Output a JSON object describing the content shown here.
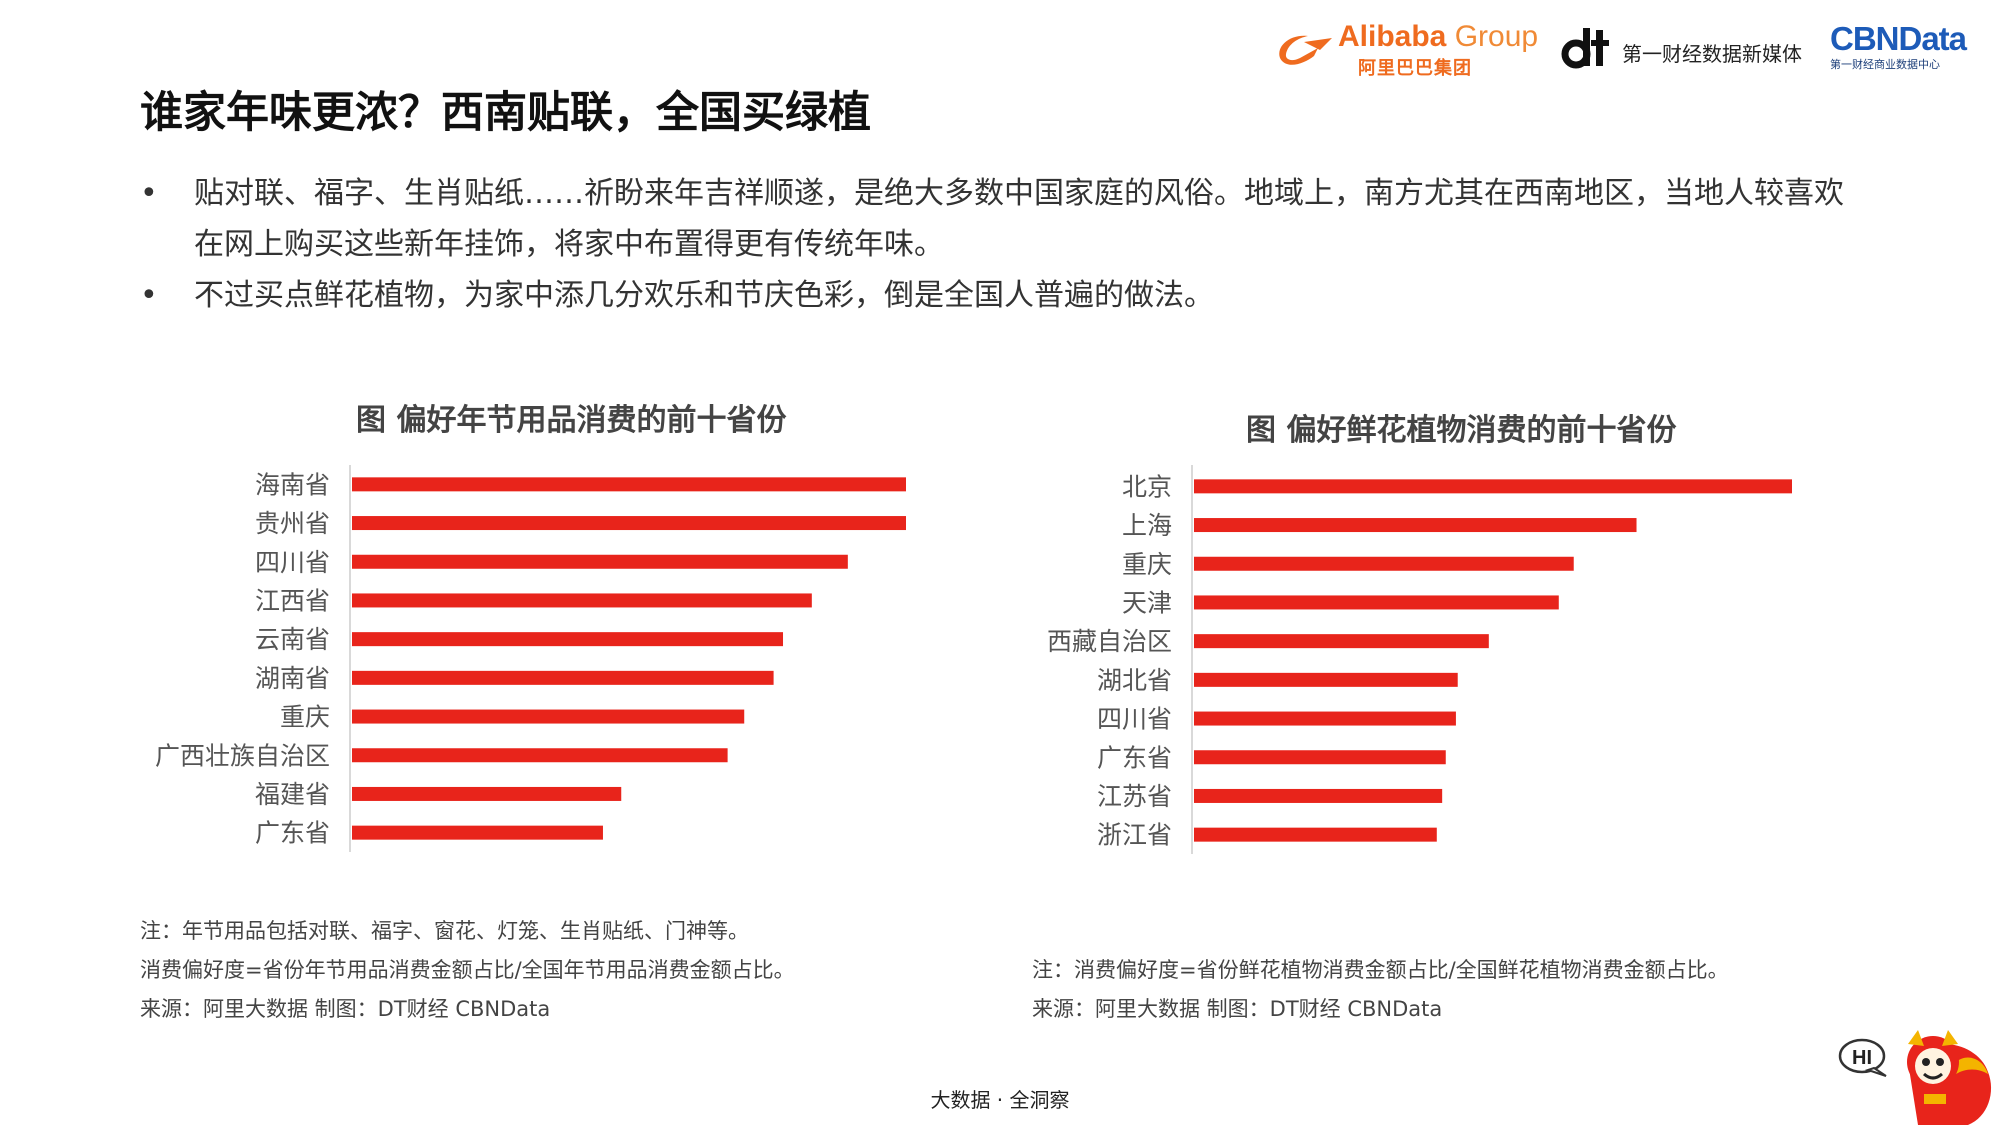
{
  "logos": {
    "alibaba_word": "Alibaba",
    "alibaba_group": " Group",
    "alibaba_sub": "阿里巴巴集团",
    "dt_text": "第一财经数据新媒体",
    "cbn_word": "CBNData",
    "cbn_sub": "第一财经商业数据中心"
  },
  "page": {
    "title": "谁家年味更浓？西南贴联，全国买绿植",
    "bullet_symbol": "•",
    "bullets": [
      "贴对联、福字、生肖贴纸……祈盼来年吉祥顺遂，是绝大多数中国家庭的风俗。地域上，南方尤其在西南地区，当地人较喜欢在网上购买这些新年挂饰，将家中布置得更有传统年味。",
      "不过买点鲜花植物，为家中添几分欢乐和节庆色彩，倒是全国人普遍的做法。"
    ]
  },
  "chart_data": [
    {
      "type": "bar",
      "orientation": "horizontal",
      "title": "图 偏好年节用品消费的前十省份",
      "categories": [
        "海南省",
        "贵州省",
        "四川省",
        "江西省",
        "云南省",
        "湖南省",
        "重庆",
        "广西壮族自治区",
        "福建省",
        "广东省"
      ],
      "values": [
        100,
        100,
        89.5,
        83,
        77.8,
        76.1,
        70.8,
        67.8,
        48.6,
        45.3
      ],
      "bar_color": "#e8241b",
      "xlim": [
        0,
        100
      ],
      "grid": false,
      "value_axis": false
    },
    {
      "type": "bar",
      "orientation": "horizontal",
      "title": "图 偏好鲜花植物消费的前十省份",
      "categories": [
        "北京",
        "上海",
        "重庆",
        "天津",
        "西藏自治区",
        "湖北省",
        "四川省",
        "广东省",
        "江苏省",
        "浙江省"
      ],
      "values": [
        100,
        74,
        63.5,
        61,
        49.3,
        44.1,
        43.8,
        42.1,
        41.5,
        40.6
      ],
      "bar_color": "#e8241b",
      "xlim": [
        0,
        100
      ],
      "grid": false,
      "value_axis": false
    }
  ],
  "notes_left": [
    "注：年节用品包括对联、福字、窗花、灯笼、生肖贴纸、门神等。",
    "消费偏好度=省份年节用品消费金额占比/全国年节用品消费金额占比。",
    "来源：阿里大数据    制图：DT财经    CBNData"
  ],
  "notes_right": [
    "注：消费偏好度=省份鲜花植物消费金额占比/全国鲜花植物消费金额占比。",
    "来源：阿里大数据    制图：DT财经    CBNData"
  ],
  "footer": "大数据 · 全洞察",
  "mascot": {
    "bubble": "HI",
    "icon": "lion-dance-mascot-icon"
  },
  "colors": {
    "accent": "#e8241b",
    "alibaba": "#ef6b1f",
    "cbn": "#1d5bb8"
  }
}
